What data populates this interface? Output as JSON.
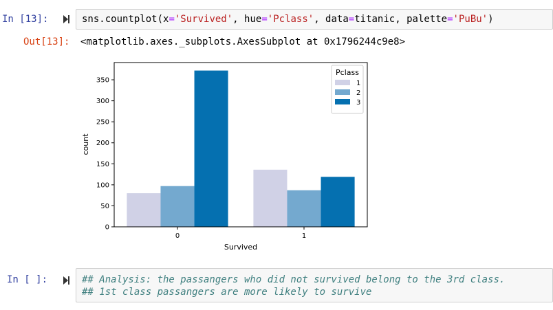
{
  "cells": [
    {
      "in_prompt": "In [13]:",
      "code": {
        "fn": "sns.countplot(x",
        "eq1": "=",
        "x_val": "'Survived'",
        "sep1": ", hue",
        "eq2": "=",
        "hue_val": "'Pclass'",
        "sep2": ", data",
        "eq3": "=",
        "data_val": "titanic",
        "sep3": ", palette",
        "eq4": "=",
        "palette_val": "'PuBu'",
        "close": ")"
      },
      "out_prompt": "Out[13]:",
      "output_text": "<matplotlib.axes._subplots.AxesSubplot at 0x1796244c9e8>"
    },
    {
      "in_prompt": "In [ ]:",
      "lines": [
        "## Analysis: the passangers who did not survived belong to the 3rd class.",
        "## 1st class passangers are more likely to survive"
      ]
    }
  ],
  "chart_data": {
    "type": "bar",
    "categories": [
      "0",
      "1"
    ],
    "series": [
      {
        "name": "1",
        "values": [
          80,
          136
        ],
        "color": "#d0d1e6"
      },
      {
        "name": "2",
        "values": [
          97,
          87
        ],
        "color": "#74a9cf"
      },
      {
        "name": "3",
        "values": [
          372,
          119
        ],
        "color": "#0570b0"
      }
    ],
    "xlabel": "Survived",
    "ylabel": "count",
    "ylim": [
      0,
      391
    ],
    "yticks": [
      0,
      50,
      100,
      150,
      200,
      250,
      300,
      350
    ],
    "legend_title": "Pclass",
    "legend_placement": "upper-right",
    "grid": false
  }
}
